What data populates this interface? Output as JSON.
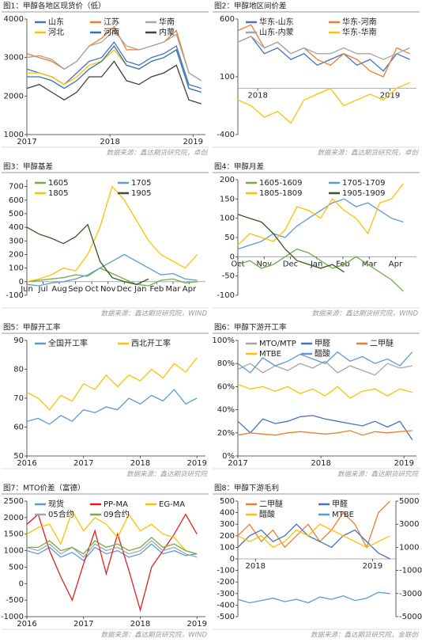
{
  "chart_data": [
    {
      "type": "line",
      "title": "图1：甲醇各地区现货价（低）",
      "source": "数据来源：鑫达期货研究院，卓创",
      "x": [
        2017,
        2017.15,
        2017.3,
        2017.45,
        2017.6,
        2017.75,
        2017.9,
        2018.05,
        2018.2,
        2018.35,
        2018.5,
        2018.65,
        2018.8,
        2018.95,
        2019.1
      ],
      "xlim": [
        2017,
        2019.15
      ],
      "xticks": [
        2017,
        2018,
        2019
      ],
      "ylim": [
        1000,
        4000
      ],
      "yticks": [
        1000,
        2000,
        3000,
        4000
      ],
      "series": [
        {
          "name": "山东",
          "color": "#4472c4",
          "values": [
            2700,
            2600,
            2500,
            2300,
            2600,
            2900,
            3000,
            3400,
            2900,
            2800,
            3000,
            3100,
            3300,
            2300,
            2200
          ]
        },
        {
          "name": "江苏",
          "color": "#ed7d31",
          "values": [
            3100,
            3000,
            2900,
            2700,
            2900,
            3300,
            3500,
            3800,
            3200,
            3200,
            3300,
            3400,
            3700,
            2600,
            2400
          ]
        },
        {
          "name": "华南",
          "color": "#a5a5a5",
          "values": [
            3000,
            3050,
            2950,
            2700,
            2900,
            3300,
            3400,
            3700,
            3300,
            3200,
            3300,
            3400,
            3600,
            2600,
            2400
          ]
        },
        {
          "name": "河北",
          "color": "#ffc000",
          "values": [
            2600,
            2600,
            2500,
            2300,
            2500,
            2800,
            2900,
            3200,
            2800,
            2700,
            2900,
            3000,
            3200,
            2200,
            2100
          ]
        },
        {
          "name": "河南",
          "color": "#2e75b6",
          "values": [
            2500,
            2500,
            2400,
            2200,
            2400,
            2700,
            2900,
            3300,
            2800,
            2700,
            2900,
            3000,
            3200,
            2200,
            2100
          ]
        },
        {
          "name": "内蒙",
          "color": "#404040",
          "values": [
            2200,
            2300,
            2100,
            1900,
            2100,
            2500,
            2500,
            2900,
            2400,
            2300,
            2500,
            2600,
            2800,
            1900,
            1800
          ]
        }
      ]
    },
    {
      "type": "line",
      "title": "图2：甲醇地区间价差",
      "source": "数据来源：鑫达期货研究院，卓创",
      "x": [
        2017.85,
        2017.95,
        2018.05,
        2018.15,
        2018.25,
        2018.35,
        2018.45,
        2018.55,
        2018.65,
        2018.75,
        2018.85,
        2018.95,
        2019.05,
        2019.15
      ],
      "xlim": [
        2017.85,
        2019.2
      ],
      "xticks": [
        2018,
        2019
      ],
      "ylim": [
        -400,
        600
      ],
      "yticks": [
        -400,
        100,
        600
      ],
      "xaxis_crosses": 0,
      "series": [
        {
          "name": "华东-山东",
          "color": "#4472c4",
          "values": [
            400,
            450,
            300,
            350,
            250,
            300,
            200,
            250,
            300,
            200,
            250,
            150,
            300,
            250
          ]
        },
        {
          "name": "华东-河南",
          "color": "#ed7d31",
          "values": [
            500,
            550,
            350,
            400,
            300,
            350,
            250,
            200,
            300,
            250,
            150,
            100,
            350,
            300
          ]
        },
        {
          "name": "山东-内蒙",
          "color": "#a5a5a5",
          "values": [
            400,
            450,
            350,
            400,
            300,
            350,
            300,
            300,
            350,
            300,
            300,
            250,
            300,
            350
          ]
        },
        {
          "name": "华东-华南",
          "color": "#ffc000",
          "values": [
            -100,
            -150,
            -250,
            -200,
            -300,
            -100,
            -50,
            0,
            -150,
            -100,
            -50,
            -100,
            0,
            50
          ]
        }
      ]
    },
    {
      "type": "line",
      "title": "图3：甲醇基差",
      "source": "数据来源：鑫达期货研究院，WIND",
      "x": [
        0,
        0.75,
        1.5,
        2.25,
        3,
        3.75,
        4.5,
        5.25,
        6,
        6.75,
        7.5,
        8.25,
        9,
        9.75,
        10.5
      ],
      "xlim": [
        0,
        11
      ],
      "xticks": [
        {
          "value": 0,
          "label": "Jun"
        },
        {
          "value": 1,
          "label": "Jul"
        },
        {
          "value": 2,
          "label": "Aug"
        },
        {
          "value": 3,
          "label": "Sep"
        },
        {
          "value": 4,
          "label": "Oct"
        },
        {
          "value": 5,
          "label": "Nov"
        },
        {
          "value": 6,
          "label": "Dec"
        },
        {
          "value": 7,
          "label": "Jan"
        },
        {
          "value": 8,
          "label": "Feb"
        },
        {
          "value": 9,
          "label": "Mar"
        },
        {
          "value": 10,
          "label": "Apr"
        }
      ],
      "ylim": [
        -100,
        750
      ],
      "yticks": [
        -100,
        0,
        100,
        200,
        300,
        400,
        500,
        600,
        700
      ],
      "xaxis_crosses": 0,
      "series": [
        {
          "name": "1605",
          "color": "#70ad47",
          "values": [
            0,
            10,
            20,
            30,
            50,
            40,
            100,
            60,
            20,
            -20,
            -30,
            10,
            20,
            -10,
            0
          ]
        },
        {
          "name": "1705",
          "color": "#5b9bd5",
          "values": [
            -20,
            -30,
            -10,
            0,
            20,
            50,
            100,
            150,
            200,
            150,
            100,
            50,
            60,
            20,
            10
          ]
        },
        {
          "name": "1805",
          "color": "#ffc000",
          "values": [
            0,
            20,
            50,
            100,
            80,
            200,
            400,
            700,
            600,
            450,
            300,
            200,
            150,
            100,
            200
          ]
        },
        {
          "name": "1905",
          "color": "#375623",
          "values": [
            400,
            350,
            320,
            280,
            330,
            420,
            150,
            30,
            0,
            -20,
            20,
            null,
            null,
            null,
            null
          ]
        }
      ]
    },
    {
      "type": "line",
      "title": "图4：甲醇月差",
      "source": "数据来源：鑫达期货研究院，WIND",
      "x": [
        0,
        0.45,
        0.9,
        1.35,
        1.8,
        2.25,
        2.7,
        3.15,
        3.6,
        4.05,
        4.5,
        4.95,
        5.4,
        5.85,
        6.3
      ],
      "xlim": [
        0,
        6.8
      ],
      "xticks": [
        {
          "value": 0,
          "label": "Oct"
        },
        {
          "value": 1,
          "label": "Nov"
        },
        {
          "value": 2,
          "label": "Dec"
        },
        {
          "value": 3,
          "label": "Jan"
        },
        {
          "value": 4,
          "label": "Feb"
        },
        {
          "value": 5,
          "label": "Mar"
        },
        {
          "value": 6,
          "label": "Apr"
        }
      ],
      "ylim": [
        -100,
        200
      ],
      "yticks": [
        -100,
        -50,
        0,
        50,
        100,
        150,
        200
      ],
      "xaxis_crosses": 0,
      "series": [
        {
          "name": "1605-1609",
          "color": "#70ad47",
          "values": [
            -20,
            -10,
            -30,
            -20,
            0,
            20,
            10,
            -10,
            -30,
            -20,
            0,
            -20,
            -40,
            -60,
            -90
          ]
        },
        {
          "name": "1705-1709",
          "color": "#5b9bd5",
          "values": [
            20,
            30,
            40,
            60,
            50,
            80,
            100,
            120,
            140,
            150,
            130,
            140,
            120,
            100,
            90
          ]
        },
        {
          "name": "1805-1809",
          "color": "#ffc000",
          "values": [
            30,
            60,
            50,
            40,
            70,
            130,
            120,
            100,
            150,
            120,
            100,
            60,
            140,
            150,
            190
          ]
        },
        {
          "name": "1905-1909",
          "color": "#375623",
          "values": [
            110,
            100,
            90,
            60,
            20,
            -10,
            -20,
            -30,
            -20,
            -40,
            null,
            null,
            null,
            null,
            null
          ]
        }
      ]
    },
    {
      "type": "line",
      "title": "图5：甲醇开工率",
      "source": "数据来源：鑫达期货研究院",
      "x": [
        2016,
        2016.2,
        2016.4,
        2016.6,
        2016.8,
        2017,
        2017.2,
        2017.4,
        2017.6,
        2017.8,
        2018,
        2018.2,
        2018.4,
        2018.6,
        2018.8,
        2019
      ],
      "xlim": [
        2016,
        2019.15
      ],
      "xticks": [
        2016,
        2017,
        2018,
        2019
      ],
      "ylim": [
        50,
        90
      ],
      "yticks": [
        50,
        60,
        70,
        80,
        90
      ],
      "series": [
        {
          "name": "全国开工率",
          "color": "#5b9bd5",
          "values": [
            62,
            63,
            61,
            64,
            62,
            66,
            65,
            67,
            66,
            70,
            68,
            71,
            69,
            73,
            68,
            70
          ]
        },
        {
          "name": "西北开工率",
          "color": "#ffc000",
          "values": [
            72,
            70,
            66,
            71,
            69,
            75,
            73,
            78,
            74,
            78,
            76,
            80,
            77,
            82,
            79,
            84
          ]
        }
      ]
    },
    {
      "type": "line",
      "title": "图6：甲醇下游开工率",
      "source": "数据来源：鑫达期货研究院",
      "x": [
        2017,
        2017.15,
        2017.3,
        2017.45,
        2017.6,
        2017.75,
        2017.9,
        2018.05,
        2018.2,
        2018.35,
        2018.5,
        2018.65,
        2018.8,
        2018.95,
        2019.1
      ],
      "xlim": [
        2017,
        2019.15
      ],
      "xticks": [
        2017,
        2018,
        2019
      ],
      "ylim": [
        0,
        100
      ],
      "yticks": [
        {
          "value": 0,
          "label": "0%"
        },
        {
          "value": 20,
          "label": "20%"
        },
        {
          "value": 40,
          "label": "40%"
        },
        {
          "value": 60,
          "label": "60%"
        },
        {
          "value": 80,
          "label": "80%"
        },
        {
          "value": 100,
          "label": "100%"
        }
      ],
      "series": [
        {
          "name": "MTO/MTP",
          "color": "#a5a5a5",
          "values": [
            75,
            80,
            72,
            78,
            74,
            80,
            76,
            82,
            72,
            78,
            74,
            70,
            80,
            76,
            78
          ]
        },
        {
          "name": "甲醛",
          "color": "#4472c4",
          "values": [
            30,
            20,
            32,
            28,
            30,
            34,
            35,
            32,
            30,
            28,
            26,
            30,
            25,
            30,
            14
          ]
        },
        {
          "name": "二甲醚",
          "color": "#ed7d31",
          "values": [
            18,
            20,
            19,
            18,
            20,
            21,
            20,
            19,
            20,
            22,
            18,
            21,
            20,
            21,
            22
          ]
        },
        {
          "name": "MTBE",
          "color": "#ffc000",
          "values": [
            62,
            58,
            60,
            56,
            60,
            54,
            58,
            52,
            60,
            50,
            56,
            58,
            52,
            58,
            55
          ]
        },
        {
          "name": "醋酸",
          "color": "#5b9bd5",
          "values": [
            80,
            72,
            85,
            78,
            82,
            88,
            84,
            80,
            90,
            82,
            86,
            80,
            84,
            78,
            90
          ]
        }
      ]
    },
    {
      "type": "line",
      "title": "图7：MTO价差（富德）",
      "source": "数据来源：鑫达期货研究院，WIND",
      "x": [
        2016,
        2016.2,
        2016.4,
        2016.6,
        2016.8,
        2017,
        2017.2,
        2017.4,
        2017.6,
        2017.8,
        2018,
        2018.2,
        2018.4,
        2018.6,
        2018.8,
        2019
      ],
      "xlim": [
        2016,
        2019.15
      ],
      "xticks": [
        2016,
        2017,
        2018,
        2019
      ],
      "ylim": [
        -1000,
        2500
      ],
      "yticks": [
        -1000,
        -500,
        0,
        500,
        1000,
        1500,
        2000,
        2500
      ],
      "series": [
        {
          "name": "现货",
          "color": "#5b9bd5",
          "values": [
            1000,
            900,
            1100,
            800,
            950,
            700,
            1100,
            900,
            1000,
            800,
            900,
            1200,
            900,
            1000,
            850,
            900
          ]
        },
        {
          "name": "PP-MA",
          "color": "#e02020",
          "values": [
            1800,
            2100,
            1000,
            200,
            -500,
            600,
            1600,
            300,
            1500,
            400,
            -800,
            500,
            1000,
            1500,
            2100,
            1500
          ]
        },
        {
          "name": "EG-MA",
          "color": "#ffc000",
          "values": [
            1500,
            1700,
            1800,
            1200,
            2200,
            1600,
            2000,
            1800,
            1400,
            2100,
            1600,
            1800,
            1500,
            1400,
            1000,
            900
          ]
        },
        {
          "name": "05合约",
          "color": "#a5a5a5",
          "values": [
            1100,
            1000,
            1200,
            900,
            1100,
            800,
            1200,
            1000,
            1100,
            900,
            1000,
            1300,
            1000,
            1100,
            900,
            800
          ]
        },
        {
          "name": "09合约",
          "color": "#70ad47",
          "values": [
            1100,
            1100,
            1300,
            1000,
            1100,
            900,
            1300,
            1100,
            1200,
            1000,
            1100,
            1400,
            1100,
            1200,
            1000,
            900
          ]
        }
      ]
    },
    {
      "type": "line",
      "title": "图8：甲醇下游毛利",
      "source": "数据来源：鑫达期货研究院，金联创",
      "x": [
        2017.85,
        2017.95,
        2018.05,
        2018.15,
        2018.25,
        2018.35,
        2018.45,
        2018.55,
        2018.65,
        2018.75,
        2018.85,
        2018.95,
        2019.05,
        2019.15
      ],
      "xlim": [
        2017.85,
        2019.2
      ],
      "xticks": [
        2018,
        2019
      ],
      "xaxis_crosses": 0,
      "ylim": [
        -500,
        500
      ],
      "yticks": [
        -500,
        -400,
        -300,
        -200,
        -100,
        0,
        100,
        200,
        300,
        400,
        500
      ],
      "y2lim": [
        -5000,
        5000
      ],
      "y2ticks": [
        -5000,
        -3000,
        -1000,
        1000,
        3000,
        5000
      ],
      "series": [
        {
          "name": "二甲醚",
          "color": "#ed7d31",
          "values": [
            200,
            300,
            150,
            250,
            100,
            200,
            300,
            150,
            250,
            400,
            300,
            100,
            400,
            500
          ]
        },
        {
          "name": "甲醛",
          "color": "#4472c4",
          "values": [
            100,
            200,
            250,
            150,
            200,
            300,
            200,
            150,
            100,
            200,
            250,
            150,
            50,
            0
          ]
        },
        {
          "name": "醋酸",
          "color": "#ffc000",
          "values": [
            200,
            150,
            200,
            100,
            150,
            250,
            200,
            300,
            250,
            200,
            150,
            100,
            150,
            200
          ]
        },
        {
          "name": "MTBE",
          "color": "#5b9bd5",
          "axis": "y2",
          "values": [
            -3500,
            -3800,
            -3600,
            -3400,
            -3700,
            -3500,
            -3800,
            -3300,
            -3500,
            -3200,
            -3600,
            -3400,
            -2900,
            -3000
          ]
        }
      ]
    }
  ]
}
